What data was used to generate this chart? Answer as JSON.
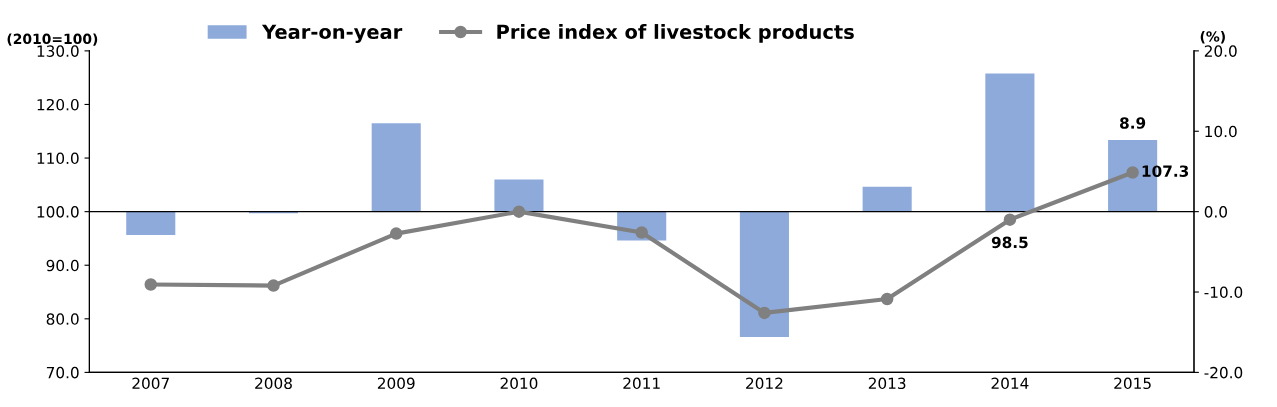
{
  "chart_data": {
    "type": "bar",
    "ylabel": "(2010=100)",
    "y2label": "(%)",
    "categories": [
      "2007",
      "2008",
      "2009",
      "2010",
      "2011",
      "2012",
      "2013",
      "2014",
      "2015"
    ],
    "series": [
      {
        "name": "Year-on-year",
        "axis": "y2",
        "color": "#8eaadb",
        "values": [
          -2.9,
          -0.2,
          11.0,
          4.0,
          -3.6,
          -15.6,
          3.1,
          17.2,
          8.9
        ],
        "value_labels": [
          null,
          null,
          null,
          null,
          null,
          null,
          null,
          null,
          "8.9"
        ]
      },
      {
        "name": "Price index of livestock products",
        "type": "line",
        "axis": "y",
        "color": "#808080",
        "marker": "circle",
        "values": [
          86.4,
          86.2,
          95.9,
          100.0,
          96.1,
          81.1,
          83.7,
          98.5,
          107.3
        ],
        "value_labels": [
          null,
          null,
          null,
          null,
          null,
          null,
          null,
          "98.5",
          "107.3"
        ]
      }
    ],
    "ylim": [
      70,
      130
    ],
    "yticks": [
      {
        "value": 70,
        "label": "70.0"
      },
      {
        "value": 80,
        "label": "80.0"
      },
      {
        "value": 90,
        "label": "90.0"
      },
      {
        "value": 100,
        "label": "100.0"
      },
      {
        "value": 110,
        "label": "110.0"
      },
      {
        "value": 120,
        "label": "120.0"
      },
      {
        "value": 130,
        "label": "130.0"
      }
    ],
    "y2lim": [
      -20,
      20
    ],
    "y2ticks": [
      {
        "value": -20,
        "label": "-20.0"
      },
      {
        "value": -10,
        "label": "-10.0"
      },
      {
        "value": 0,
        "label": "0.0"
      },
      {
        "value": 10,
        "label": "10.0"
      },
      {
        "value": 20,
        "label": "20.0"
      }
    ],
    "ref_lines": [
      {
        "axis": "y",
        "value": 100,
        "color": "#000000"
      }
    ],
    "legend": "top",
    "grid": false
  }
}
